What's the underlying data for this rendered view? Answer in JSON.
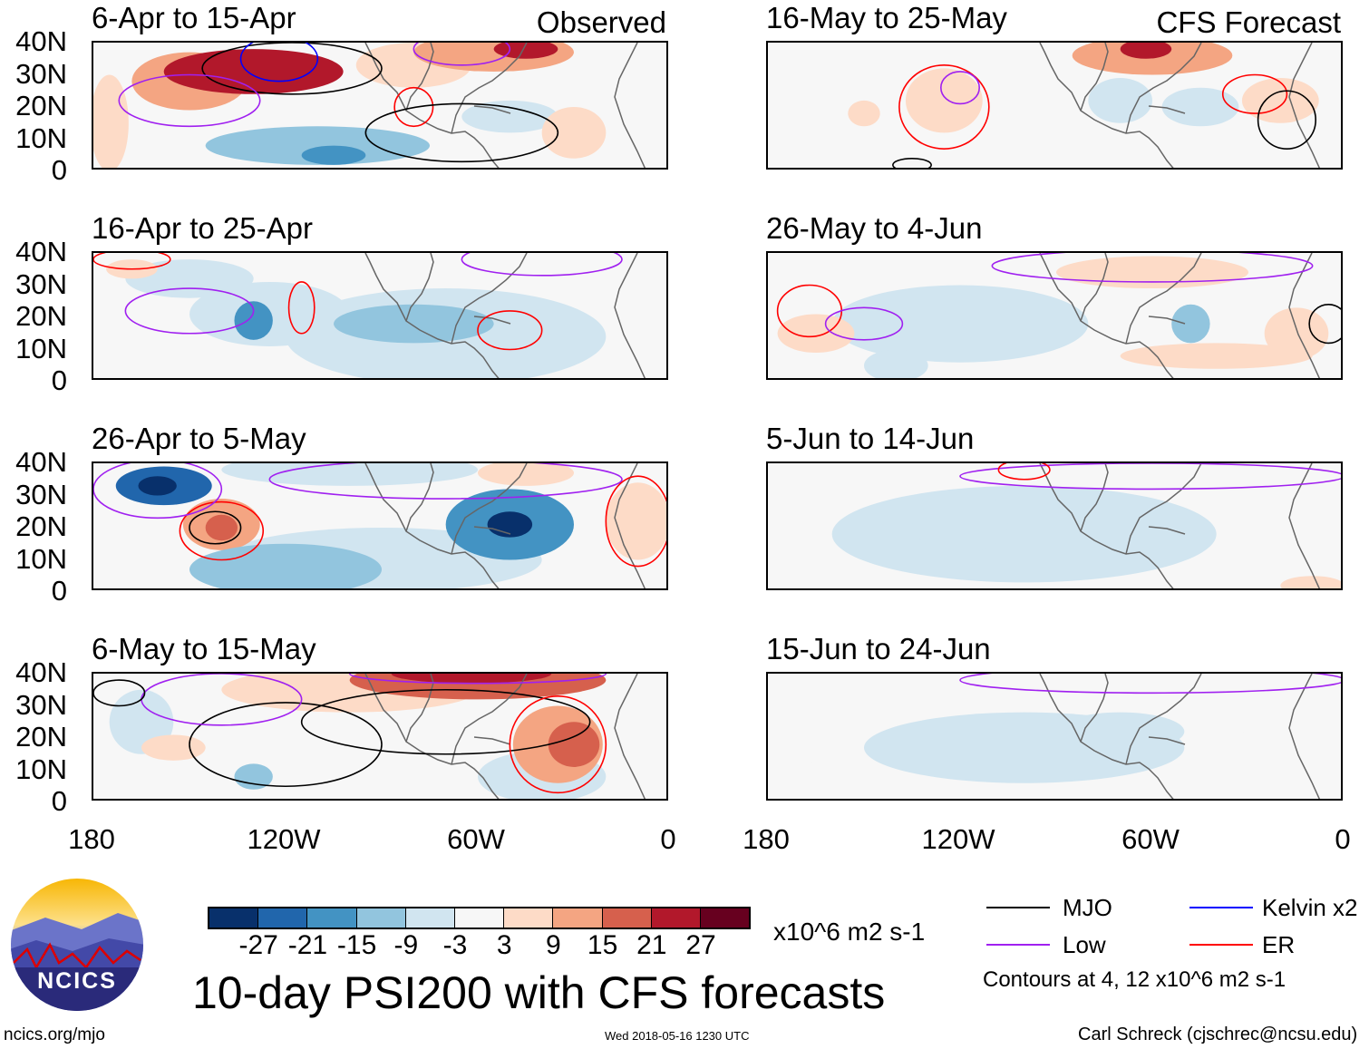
{
  "panels": [
    {
      "title": "6-Apr to 15-Apr",
      "label": "Observed",
      "shade": [
        [
          130,
          31,
          28,
          7,
          25
        ],
        [
          150,
          28,
          18,
          9,
          12
        ],
        [
          80,
          33,
          18,
          7,
          8
        ],
        [
          55,
          37,
          25,
          6,
          14
        ],
        [
          45,
          38,
          10,
          3,
          21
        ],
        [
          110,
          8,
          35,
          6,
          -10
        ],
        [
          105,
          5,
          10,
          3,
          -16
        ],
        [
          50,
          17,
          15,
          5,
          -5
        ],
        [
          30,
          12,
          10,
          8,
          6
        ],
        [
          175,
          15,
          6,
          15,
          4
        ]
      ],
      "contours": [
        [
          "MJO",
          118,
          32,
          28,
          8
        ],
        [
          "Kelvin",
          122,
          35,
          12,
          7
        ],
        [
          "Low",
          150,
          22,
          22,
          8
        ],
        [
          "Low",
          65,
          38,
          15,
          5
        ],
        [
          "ER",
          80,
          20,
          6,
          6
        ],
        [
          "MJO",
          65,
          12,
          30,
          9
        ]
      ]
    },
    {
      "title": "16-May to 25-May",
      "label": "CFS Forecast",
      "shade": [
        [
          60,
          36,
          25,
          6,
          14
        ],
        [
          62,
          38,
          8,
          3,
          25
        ],
        [
          20,
          22,
          12,
          7,
          8
        ],
        [
          125,
          22,
          12,
          10,
          5
        ],
        [
          70,
          22,
          10,
          7,
          -8
        ],
        [
          45,
          20,
          12,
          6,
          -6
        ],
        [
          150,
          18,
          5,
          4,
          5
        ]
      ],
      "contours": [
        [
          "ER",
          125,
          20,
          14,
          13
        ],
        [
          "ER",
          28,
          24,
          10,
          6
        ],
        [
          "MJO",
          18,
          16,
          9,
          9
        ],
        [
          "Low",
          120,
          26,
          6,
          5
        ],
        [
          "MJO",
          135,
          2,
          6,
          2
        ]
      ]
    },
    {
      "title": "16-Apr to 25-Apr",
      "label": "",
      "shade": [
        [
          80,
          18,
          25,
          6,
          -14
        ],
        [
          125,
          21,
          25,
          10,
          -8
        ],
        [
          130,
          19,
          6,
          6,
          -16
        ],
        [
          70,
          14,
          50,
          15,
          -5
        ],
        [
          150,
          32,
          20,
          6,
          -4
        ],
        [
          168,
          35,
          8,
          3,
          4
        ],
        [
          145,
          19,
          3,
          2,
          5
        ]
      ],
      "contours": [
        [
          "Low",
          150,
          22,
          20,
          7
        ],
        [
          "ER",
          115,
          23,
          4,
          8
        ],
        [
          "ER",
          50,
          16,
          10,
          6
        ],
        [
          "Low",
          40,
          38,
          25,
          5
        ],
        [
          "ER",
          168,
          38,
          12,
          3
        ]
      ]
    },
    {
      "title": "26-May to 4-Jun",
      "label": "",
      "shade": [
        [
          120,
          18,
          40,
          12,
          -4
        ],
        [
          140,
          5,
          10,
          5,
          -8
        ],
        [
          48,
          18,
          6,
          6,
          -10
        ],
        [
          15,
          15,
          10,
          8,
          6
        ],
        [
          40,
          8,
          30,
          4,
          3
        ],
        [
          165,
          15,
          12,
          6,
          6
        ],
        [
          60,
          34,
          30,
          5,
          3
        ]
      ],
      "contours": [
        [
          "ER",
          167,
          22,
          10,
          8
        ],
        [
          "Low",
          150,
          18,
          12,
          5
        ],
        [
          "MJO",
          5,
          18,
          6,
          6
        ],
        [
          "Low",
          60,
          36,
          50,
          5
        ]
      ]
    },
    {
      "title": "26-Apr to 5-May",
      "label": "",
      "shade": [
        [
          158,
          33,
          15,
          6,
          -22
        ],
        [
          160,
          33,
          6,
          3,
          -30
        ],
        [
          50,
          21,
          20,
          11,
          -18
        ],
        [
          50,
          21,
          7,
          4,
          -29
        ],
        [
          140,
          21,
          12,
          8,
          10
        ],
        [
          140,
          20,
          5,
          4,
          18
        ],
        [
          120,
          7,
          30,
          8,
          -12
        ],
        [
          90,
          10,
          50,
          10,
          -4
        ],
        [
          10,
          22,
          10,
          12,
          5
        ],
        [
          100,
          38,
          40,
          5,
          -6
        ],
        [
          45,
          37,
          15,
          4,
          6
        ]
      ],
      "contours": [
        [
          "MJO",
          142,
          20,
          8,
          5
        ],
        [
          "ER",
          140,
          19,
          13,
          9
        ],
        [
          "Low",
          160,
          32,
          20,
          9
        ],
        [
          "Low",
          70,
          35,
          55,
          6
        ],
        [
          "ER",
          10,
          22,
          10,
          14
        ]
      ]
    },
    {
      "title": "5-Jun to 14-Jun",
      "label": "",
      "shade": [
        [
          120,
          22,
          15,
          10,
          -8
        ],
        [
          100,
          18,
          60,
          15,
          -4
        ],
        [
          10,
          2,
          10,
          3,
          5
        ]
      ],
      "contours": [
        [
          "Low",
          60,
          36,
          60,
          4
        ],
        [
          "ER",
          100,
          38,
          8,
          3
        ]
      ]
    },
    {
      "title": "6-May to 15-May",
      "label": "",
      "shade": [
        [
          60,
          38,
          40,
          6,
          18
        ],
        [
          62,
          40,
          25,
          3,
          25
        ],
        [
          100,
          35,
          40,
          7,
          8
        ],
        [
          35,
          18,
          14,
          12,
          12
        ],
        [
          30,
          18,
          8,
          7,
          18
        ],
        [
          155,
          17,
          10,
          4,
          6
        ],
        [
          40,
          8,
          20,
          8,
          -4
        ],
        [
          130,
          8,
          6,
          4,
          -12
        ],
        [
          165,
          25,
          10,
          10,
          -4
        ]
      ],
      "contours": [
        [
          "MJO",
          70,
          25,
          45,
          10
        ],
        [
          "MJO",
          120,
          18,
          30,
          13
        ],
        [
          "ER",
          35,
          18,
          15,
          15
        ],
        [
          "Low",
          140,
          32,
          25,
          8
        ],
        [
          "Low",
          60,
          40,
          40,
          3
        ],
        [
          "MJO",
          172,
          34,
          8,
          4
        ]
      ]
    },
    {
      "title": "15-Jun to 24-Jun",
      "label": "",
      "shade": [
        [
          100,
          17,
          50,
          11,
          -8
        ],
        [
          70,
          22,
          20,
          6,
          -5
        ],
        [
          100,
          18,
          70,
          18,
          -3
        ]
      ],
      "contours": [
        [
          "Low",
          60,
          38,
          60,
          4
        ]
      ]
    }
  ],
  "lat_ticks": [
    "40N",
    "30N",
    "20N",
    "10N",
    "0"
  ],
  "lon_ticks": [
    "180",
    "120W",
    "60W",
    "0"
  ],
  "colorbar": {
    "levels": [
      "-27",
      "-21",
      "-15",
      "-9",
      "-3",
      "3",
      "9",
      "15",
      "21",
      "27"
    ],
    "colors": [
      "#08306b",
      "#2166ac",
      "#4393c3",
      "#92c5de",
      "#d1e5f0",
      "#f7f7f7",
      "#fddbc7",
      "#f4a582",
      "#d6604d",
      "#b2182b",
      "#67001f"
    ],
    "units": "x10^6 m2 s-1"
  },
  "legend": {
    "items": [
      {
        "name": "MJO",
        "color": "#000000"
      },
      {
        "name": "Kelvin x2",
        "color": "#0000ff"
      },
      {
        "name": "Low",
        "color": "#a020f0"
      },
      {
        "name": "ER",
        "color": "#ff0000"
      }
    ],
    "note": "Contours at 4, 12 x10^6 m2 s-1"
  },
  "title": "10-day PSI200 with CFS forecasts",
  "logo_text": "NCICS",
  "footer": {
    "url": "ncics.org/mjo",
    "timestamp": "Wed 2018-05-16 1230 UTC",
    "author": "Carl Schreck (cjschrec@ncsu.edu)"
  }
}
